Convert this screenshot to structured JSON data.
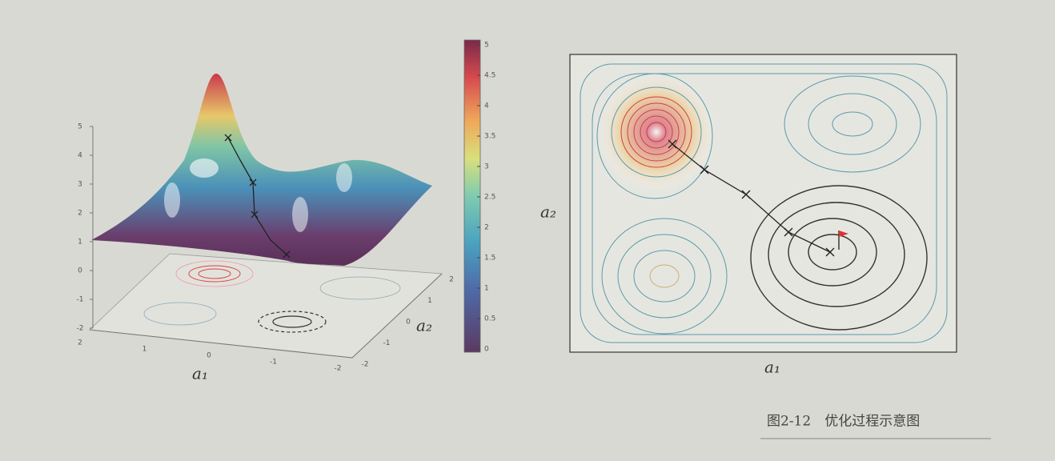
{
  "figure": {
    "caption": "图2-12　优化过程示意图",
    "surface_plot": {
      "z_ticks": [
        -2,
        -1,
        0,
        1,
        2,
        3,
        4,
        5
      ],
      "x_label": "a₁",
      "x_ticks": [
        2,
        1,
        0,
        -1,
        -2
      ],
      "y_label": "a₂",
      "y_ticks": [
        -2,
        -1,
        0,
        1,
        2
      ]
    },
    "colorbar": {
      "ticks": [
        0,
        0.5,
        1,
        1.5,
        2,
        2.5,
        3,
        3.5,
        4,
        4.5,
        5
      ]
    },
    "contour_plot": {
      "x_label": "a₁",
      "y_label": "a₂"
    }
  }
}
